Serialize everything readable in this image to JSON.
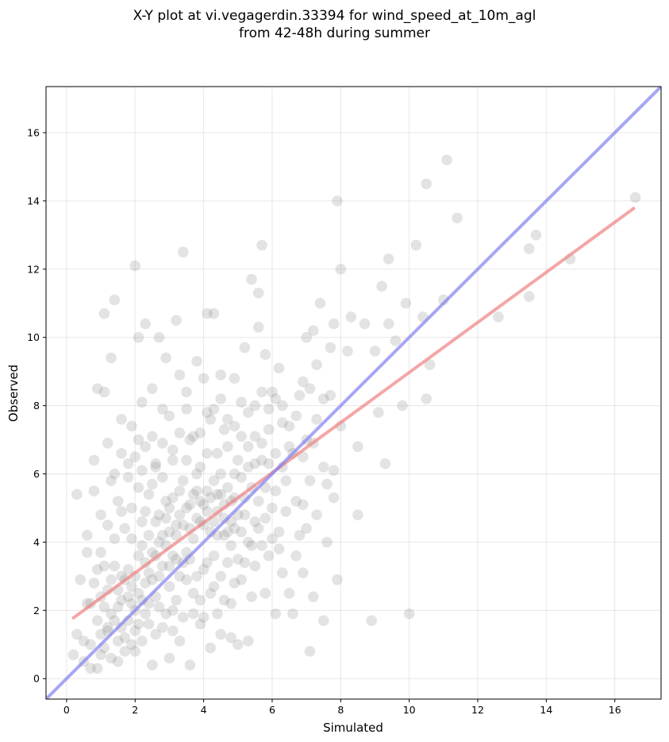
{
  "chart_data": {
    "type": "scatter",
    "title": "X-Y plot at vi.vegagerdin.33394 for wind_speed_at_10m_agl",
    "subtitle": "from 42-48h during summer",
    "xlabel": "Simulated",
    "ylabel": "Observed",
    "xlim": [
      -0.6,
      17.35
    ],
    "ylim": [
      -0.6,
      17.35
    ],
    "xticks": [
      0,
      2,
      4,
      6,
      8,
      10,
      12,
      14,
      16
    ],
    "yticks": [
      0,
      2,
      4,
      6,
      8,
      10,
      12,
      14,
      16
    ],
    "grid": true,
    "point_color": "#808080",
    "regression_color": "#f08080",
    "identity_color": "#8080f0",
    "identity_line": {
      "slope": 1,
      "intercept": 0
    },
    "regression_line": {
      "x": [
        0.2,
        16.55
      ],
      "y": [
        1.78,
        13.78
      ]
    },
    "points": [
      [
        0.2,
        0.7
      ],
      [
        0.3,
        1.3
      ],
      [
        0.3,
        5.4
      ],
      [
        0.4,
        2.9
      ],
      [
        0.5,
        0.5
      ],
      [
        0.6,
        4.2
      ],
      [
        0.6,
        3.7
      ],
      [
        0.7,
        1.0
      ],
      [
        0.7,
        2.2
      ],
      [
        0.8,
        5.5
      ],
      [
        0.8,
        6.4
      ],
      [
        0.9,
        8.5
      ],
      [
        0.9,
        0.3
      ],
      [
        1.0,
        2.4
      ],
      [
        1.0,
        4.8
      ],
      [
        1.1,
        10.7
      ],
      [
        1.1,
        8.4
      ],
      [
        1.1,
        3.3
      ],
      [
        1.2,
        1.5
      ],
      [
        1.2,
        6.9
      ],
      [
        1.3,
        9.4
      ],
      [
        1.3,
        5.8
      ],
      [
        1.4,
        4.1
      ],
      [
        1.4,
        11.1
      ],
      [
        1.5,
        0.5
      ],
      [
        1.5,
        2.1
      ],
      [
        1.6,
        7.6
      ],
      [
        1.6,
        3.0
      ],
      [
        1.7,
        4.4
      ],
      [
        1.7,
        1.2
      ],
      [
        1.8,
        5.9
      ],
      [
        1.9,
        7.4
      ],
      [
        1.9,
        2.7
      ],
      [
        2.0,
        6.5
      ],
      [
        2.0,
        0.8
      ],
      [
        2.0,
        12.1
      ],
      [
        2.1,
        3.6
      ],
      [
        2.1,
        10.0
      ],
      [
        2.2,
        4.6
      ],
      [
        2.2,
        8.1
      ],
      [
        2.3,
        1.9
      ],
      [
        2.3,
        10.4
      ],
      [
        2.4,
        5.4
      ],
      [
        2.4,
        3.1
      ],
      [
        2.5,
        8.5
      ],
      [
        2.5,
        0.4
      ],
      [
        2.6,
        6.3
      ],
      [
        2.6,
        2.4
      ],
      [
        2.7,
        4.0
      ],
      [
        2.7,
        10.0
      ],
      [
        2.8,
        7.9
      ],
      [
        2.8,
        1.5
      ],
      [
        2.9,
        9.4
      ],
      [
        2.9,
        5.2
      ],
      [
        3.0,
        3.3
      ],
      [
        3.0,
        0.6
      ],
      [
        3.1,
        6.7
      ],
      [
        3.1,
        2.0
      ],
      [
        3.2,
        10.5
      ],
      [
        3.2,
        4.5
      ],
      [
        3.3,
        8.9
      ],
      [
        3.3,
        1.1
      ],
      [
        3.4,
        12.5
      ],
      [
        3.4,
        5.8
      ],
      [
        3.5,
        3.7
      ],
      [
        3.5,
        8.4
      ],
      [
        3.6,
        7.0
      ],
      [
        3.6,
        0.4
      ],
      [
        3.7,
        2.5
      ],
      [
        3.8,
        4.7
      ],
      [
        3.8,
        9.3
      ],
      [
        3.9,
        6.2
      ],
      [
        3.9,
        1.6
      ],
      [
        4.0,
        8.8
      ],
      [
        4.0,
        3.2
      ],
      [
        4.1,
        10.7
      ],
      [
        4.1,
        5.5
      ],
      [
        4.2,
        7.6
      ],
      [
        4.2,
        0.9
      ],
      [
        4.3,
        2.7
      ],
      [
        4.3,
        10.7
      ],
      [
        4.4,
        6.6
      ],
      [
        4.4,
        4.2
      ],
      [
        4.5,
        8.9
      ],
      [
        4.5,
        1.3
      ],
      [
        4.6,
        5.1
      ],
      [
        4.6,
        7.3
      ],
      [
        4.7,
        3.4
      ],
      [
        4.8,
        2.2
      ],
      [
        4.8,
        1.2
      ],
      [
        4.9,
        6.0
      ],
      [
        4.9,
        8.8
      ],
      [
        5.0,
        4.8
      ],
      [
        5.0,
        1.0
      ],
      [
        5.1,
        7.1
      ],
      [
        5.1,
        2.9
      ],
      [
        5.2,
        9.7
      ],
      [
        5.2,
        5.3
      ],
      [
        5.3,
        6.2
      ],
      [
        5.3,
        1.1
      ],
      [
        5.4,
        11.7
      ],
      [
        5.4,
        3.9
      ],
      [
        5.5,
        8.0
      ],
      [
        5.5,
        4.6
      ],
      [
        5.6,
        11.3
      ],
      [
        5.6,
        10.3
      ],
      [
        5.7,
        12.7
      ],
      [
        5.7,
        6.4
      ],
      [
        5.8,
        2.5
      ],
      [
        5.8,
        9.5
      ],
      [
        5.9,
        7.3
      ],
      [
        5.9,
        3.6
      ],
      [
        6.0,
        5.0
      ],
      [
        6.0,
        8.4
      ],
      [
        6.1,
        1.9
      ],
      [
        6.1,
        6.6
      ],
      [
        6.2,
        9.1
      ],
      [
        6.2,
        4.3
      ],
      [
        6.3,
        7.5
      ],
      [
        6.3,
        3.1
      ],
      [
        6.4,
        5.8
      ],
      [
        6.5,
        7.4
      ],
      [
        6.5,
        2.5
      ],
      [
        6.6,
        1.9
      ],
      [
        6.7,
        5.2
      ],
      [
        6.8,
        8.3
      ],
      [
        6.8,
        4.2
      ],
      [
        6.9,
        6.5
      ],
      [
        6.9,
        3.1
      ],
      [
        7.0,
        10.0
      ],
      [
        7.0,
        7.0
      ],
      [
        7.1,
        0.8
      ],
      [
        7.1,
        5.8
      ],
      [
        7.2,
        2.4
      ],
      [
        7.2,
        10.2
      ],
      [
        7.3,
        7.6
      ],
      [
        7.4,
        11.0
      ],
      [
        7.5,
        6.2
      ],
      [
        7.5,
        1.7
      ],
      [
        7.6,
        4.0
      ],
      [
        7.7,
        9.7
      ],
      [
        7.8,
        5.3
      ],
      [
        7.8,
        10.4
      ],
      [
        7.9,
        2.9
      ],
      [
        7.9,
        14.0
      ],
      [
        8.0,
        7.4
      ],
      [
        8.0,
        12.0
      ],
      [
        8.2,
        9.6
      ],
      [
        8.3,
        10.6
      ],
      [
        8.5,
        6.8
      ],
      [
        8.5,
        4.8
      ],
      [
        8.7,
        10.4
      ],
      [
        8.9,
        1.7
      ],
      [
        9.0,
        9.6
      ],
      [
        9.1,
        7.8
      ],
      [
        9.2,
        11.5
      ],
      [
        9.3,
        6.3
      ],
      [
        9.4,
        12.3
      ],
      [
        9.4,
        10.4
      ],
      [
        9.6,
        9.9
      ],
      [
        9.8,
        8.0
      ],
      [
        9.9,
        11.0
      ],
      [
        10.0,
        1.9
      ],
      [
        10.2,
        12.7
      ],
      [
        10.4,
        10.6
      ],
      [
        10.5,
        8.2
      ],
      [
        10.5,
        14.5
      ],
      [
        10.6,
        9.2
      ],
      [
        11.0,
        11.1
      ],
      [
        11.1,
        15.2
      ],
      [
        11.4,
        13.5
      ],
      [
        12.6,
        10.6
      ],
      [
        13.5,
        12.6
      ],
      [
        13.5,
        11.2
      ],
      [
        13.7,
        13.0
      ],
      [
        14.7,
        12.3
      ],
      [
        16.6,
        14.1
      ],
      [
        0.5,
        1.1
      ],
      [
        0.6,
        2.2
      ],
      [
        0.7,
        0.3
      ],
      [
        0.9,
        1.7
      ],
      [
        1.0,
        3.7
      ],
      [
        1.1,
        0.9
      ],
      [
        1.2,
        2.6
      ],
      [
        1.3,
        1.9
      ],
      [
        1.3,
        0.6
      ],
      [
        1.4,
        3.3
      ],
      [
        1.5,
        1.1
      ],
      [
        1.6,
        2.3
      ],
      [
        1.6,
        4.9
      ],
      [
        1.7,
        0.8
      ],
      [
        1.8,
        3.2
      ],
      [
        1.8,
        1.7
      ],
      [
        1.9,
        2.2
      ],
      [
        1.9,
        4.1
      ],
      [
        2.0,
        1.4
      ],
      [
        2.0,
        3.0
      ],
      [
        2.1,
        2.5
      ],
      [
        2.1,
        5.6
      ],
      [
        2.2,
        1.1
      ],
      [
        2.2,
        3.9
      ],
      [
        2.3,
        2.8
      ],
      [
        2.3,
        4.9
      ],
      [
        2.4,
        1.6
      ],
      [
        2.4,
        4.2
      ],
      [
        2.5,
        2.9
      ],
      [
        2.5,
        5.7
      ],
      [
        2.6,
        1.3
      ],
      [
        2.6,
        3.6
      ],
      [
        2.7,
        2.1
      ],
      [
        2.7,
        4.8
      ],
      [
        2.8,
        3.3
      ],
      [
        2.8,
        5.9
      ],
      [
        2.9,
        1.9
      ],
      [
        2.9,
        3.9
      ],
      [
        3.0,
        2.7
      ],
      [
        3.0,
        5.0
      ],
      [
        3.1,
        1.4
      ],
      [
        3.1,
        3.6
      ],
      [
        3.2,
        2.3
      ],
      [
        3.2,
        4.2
      ],
      [
        3.3,
        3.0
      ],
      [
        3.3,
        5.5
      ],
      [
        3.4,
        1.8
      ],
      [
        3.4,
        4.5
      ],
      [
        3.5,
        2.9
      ],
      [
        3.5,
        6.4
      ],
      [
        3.6,
        3.5
      ],
      [
        3.6,
        5.1
      ],
      [
        3.7,
        1.9
      ],
      [
        3.7,
        4.1
      ],
      [
        3.8,
        3.0
      ],
      [
        3.8,
        6.0
      ],
      [
        3.9,
        2.3
      ],
      [
        3.9,
        4.6
      ],
      [
        4.0,
        1.8
      ],
      [
        4.0,
        5.1
      ],
      [
        4.1,
        3.4
      ],
      [
        4.1,
        6.6
      ],
      [
        4.2,
        2.5
      ],
      [
        4.2,
        4.3
      ],
      [
        4.3,
        5.8
      ],
      [
        4.3,
        3.6
      ],
      [
        4.4,
        1.9
      ],
      [
        4.4,
        4.9
      ],
      [
        4.5,
        3.0
      ],
      [
        4.5,
        6.0
      ],
      [
        4.6,
        2.3
      ],
      [
        4.6,
        4.2
      ],
      [
        4.7,
        5.6
      ],
      [
        4.7,
        6.8
      ],
      [
        4.8,
        3.9
      ],
      [
        4.8,
        4.6
      ],
      [
        4.9,
        2.8
      ],
      [
        4.9,
        5.3
      ],
      [
        5.0,
        3.5
      ],
      [
        5.0,
        6.4
      ],
      [
        5.1,
        4.3
      ],
      [
        5.1,
        5.9
      ],
      [
        5.2,
        3.4
      ],
      [
        5.2,
        4.8
      ],
      [
        5.3,
        6.8
      ],
      [
        5.3,
        4.0
      ],
      [
        5.4,
        5.6
      ],
      [
        5.4,
        2.4
      ],
      [
        5.5,
        6.3
      ],
      [
        5.5,
        3.3
      ],
      [
        5.6,
        4.4
      ],
      [
        5.6,
        5.2
      ],
      [
        5.7,
        6.9
      ],
      [
        5.7,
        3.9
      ],
      [
        5.8,
        5.6
      ],
      [
        5.8,
        4.7
      ],
      [
        5.9,
        6.3
      ],
      [
        6.0,
        4.1
      ],
      [
        6.1,
        5.5
      ],
      [
        6.2,
        3.8
      ],
      [
        6.3,
        6.2
      ],
      [
        6.4,
        4.9
      ],
      [
        6.6,
        6.6
      ],
      [
        6.7,
        3.6
      ],
      [
        6.9,
        5.1
      ],
      [
        7.0,
        4.4
      ],
      [
        7.2,
        6.9
      ],
      [
        7.3,
        4.8
      ],
      [
        7.6,
        5.7
      ],
      [
        7.8,
        6.1
      ],
      [
        1.0,
        1.3
      ],
      [
        1.1,
        2.1
      ],
      [
        1.2,
        1.4
      ],
      [
        1.3,
        2.9
      ],
      [
        1.4,
        1.7
      ],
      [
        1.5,
        2.6
      ],
      [
        1.6,
        1.5
      ],
      [
        1.7,
        2.9
      ],
      [
        1.8,
        2.4
      ],
      [
        1.9,
        1.0
      ],
      [
        2.0,
        2.0
      ],
      [
        2.1,
        1.6
      ],
      [
        2.2,
        2.3
      ],
      [
        2.3,
        3.4
      ],
      [
        2.4,
        2.2
      ],
      [
        2.5,
        3.7
      ],
      [
        2.6,
        4.6
      ],
      [
        2.7,
        3.0
      ],
      [
        2.8,
        4.2
      ],
      [
        2.9,
        4.7
      ],
      [
        3.0,
        4.3
      ],
      [
        3.1,
        5.3
      ],
      [
        3.2,
        3.5
      ],
      [
        3.3,
        4.8
      ],
      [
        3.4,
        3.4
      ],
      [
        3.5,
        5.0
      ],
      [
        3.6,
        4.4
      ],
      [
        3.7,
        5.4
      ],
      [
        3.8,
        5.5
      ],
      [
        3.9,
        5.2
      ],
      [
        4.0,
        4.5
      ],
      [
        4.1,
        4.9
      ],
      [
        4.2,
        5.3
      ],
      [
        4.3,
        4.6
      ],
      [
        4.4,
        5.4
      ],
      [
        4.5,
        5.4
      ],
      [
        4.6,
        4.7
      ],
      [
        4.7,
        4.3
      ],
      [
        4.8,
        5.2
      ],
      [
        4.9,
        4.4
      ],
      [
        0.8,
        2.8
      ],
      [
        0.9,
        3.2
      ],
      [
        1.0,
        0.7
      ],
      [
        1.2,
        4.5
      ],
      [
        1.4,
        6.0
      ],
      [
        1.5,
        5.2
      ],
      [
        1.6,
        6.6
      ],
      [
        1.8,
        6.3
      ],
      [
        1.9,
        5.0
      ],
      [
        2.1,
        7.0
      ],
      [
        2.2,
        6.1
      ],
      [
        2.3,
        6.8
      ],
      [
        2.5,
        7.1
      ],
      [
        2.6,
        6.2
      ],
      [
        2.8,
        6.9
      ],
      [
        3.0,
        7.7
      ],
      [
        3.1,
        6.4
      ],
      [
        3.3,
        7.2
      ],
      [
        3.5,
        7.9
      ],
      [
        3.7,
        7.1
      ],
      [
        3.9,
        7.2
      ],
      [
        4.1,
        7.8
      ],
      [
        4.3,
        7.9
      ],
      [
        4.5,
        8.2
      ],
      [
        4.7,
        7.6
      ],
      [
        4.9,
        7.4
      ],
      [
        5.1,
        8.1
      ],
      [
        5.3,
        7.8
      ],
      [
        5.5,
        7.1
      ],
      [
        5.7,
        8.4
      ],
      [
        5.9,
        7.9
      ],
      [
        6.1,
        8.2
      ],
      [
        6.3,
        8.0
      ],
      [
        6.5,
        6.8
      ],
      [
        6.7,
        7.7
      ],
      [
        6.9,
        8.7
      ],
      [
        7.1,
        8.5
      ],
      [
        7.3,
        9.2
      ],
      [
        7.5,
        8.2
      ],
      [
        7.7,
        8.3
      ]
    ]
  }
}
